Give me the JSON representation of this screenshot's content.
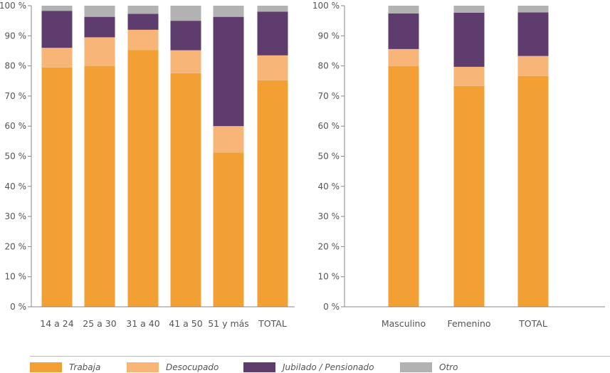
{
  "chart_data": [
    {
      "type": "bar",
      "stacked": true,
      "categories": [
        "14 a 24",
        "25 a 30",
        "31 a 40",
        "41 a 50",
        "51 y más",
        "TOTAL"
      ],
      "series": [
        {
          "name": "Trabaja",
          "color": "#f2a033",
          "values": [
            79.5,
            80,
            85.3,
            77.6,
            51.2,
            75.2
          ]
        },
        {
          "name": "Desocupado",
          "color": "#f7b677",
          "values": [
            6.5,
            9.5,
            6.7,
            7.6,
            8.8,
            8.3
          ]
        },
        {
          "name": "Jubilado / Pensionado",
          "color": "#5e3c6e",
          "values": [
            12.3,
            6.8,
            5.3,
            9.8,
            36.3,
            14.5
          ]
        },
        {
          "name": "Otro",
          "color": "#b2b2b2",
          "values": [
            1.7,
            3.7,
            2.7,
            5.0,
            3.7,
            2.0
          ]
        }
      ],
      "yticks": [
        "0 %",
        "10 %",
        "20 %",
        "30 %",
        "40 %",
        "50 %",
        "60 %",
        "70 %",
        "80 %",
        "90 %",
        "100 %"
      ],
      "ylim": [
        0,
        100
      ],
      "grid": false
    },
    {
      "type": "bar",
      "stacked": true,
      "categories": [
        "Masculino",
        "Femenino",
        "TOTAL"
      ],
      "series": [
        {
          "name": "Trabaja",
          "color": "#f2a033",
          "values": [
            79.9,
            73.3,
            76.6
          ]
        },
        {
          "name": "Desocupado",
          "color": "#f7b677",
          "values": [
            5.7,
            6.4,
            6.7
          ]
        },
        {
          "name": "Jubilado / Pensionado",
          "color": "#5e3c6e",
          "values": [
            11.8,
            18.0,
            14.5
          ]
        },
        {
          "name": "Otro",
          "color": "#b2b2b2",
          "values": [
            2.6,
            2.3,
            2.2
          ]
        }
      ],
      "yticks": [
        "0 %",
        "10 %",
        "20 %",
        "30 %",
        "40 %",
        "50 %",
        "60 %",
        "70 %",
        "80 %",
        "90 %",
        "100 %"
      ],
      "ylim": [
        0,
        100
      ],
      "grid": false
    }
  ],
  "legend": [
    {
      "label": "Trabaja",
      "color": "#f2a033"
    },
    {
      "label": "Desocupado",
      "color": "#f7b677"
    },
    {
      "label": "Jubilado / Pensionado",
      "color": "#5e3c6e"
    },
    {
      "label": "Otro",
      "color": "#b2b2b2"
    }
  ],
  "colors": {
    "axis": "#888888",
    "text": "#555555"
  }
}
